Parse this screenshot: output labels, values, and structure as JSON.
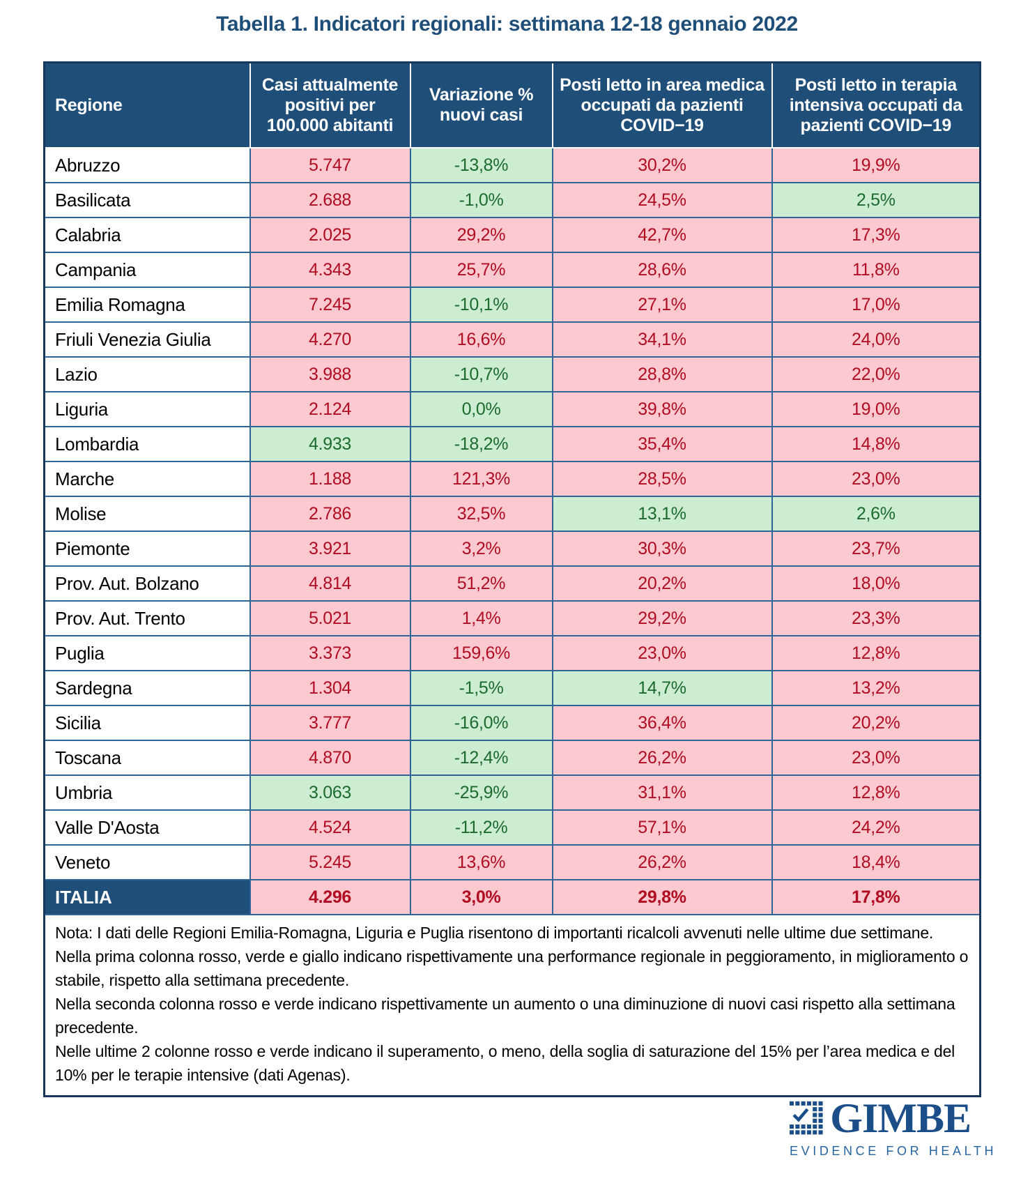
{
  "chart_data": {
    "type": "table",
    "title": "Tabella 1. Indicatori regionali: settimana 12-18 gennaio 2022",
    "columns": [
      "Regione",
      "Casi attualmente positivi per 100.000 abitanti",
      "Variazione % nuovi casi",
      "Posti letto in area medica occupati da pazienti COVID−19",
      "Posti letto in terapia intensiva occupati da pazienti COVID−19"
    ],
    "status_meaning": {
      "red": "peggioramento / soglia superata",
      "green": "miglioramento / sotto soglia"
    },
    "rows": [
      {
        "region": "Abruzzo",
        "values": [
          {
            "text": "5.747",
            "status": "red"
          },
          {
            "text": "-13,8%",
            "status": "green"
          },
          {
            "text": "30,2%",
            "status": "red"
          },
          {
            "text": "19,9%",
            "status": "red"
          }
        ]
      },
      {
        "region": "Basilicata",
        "values": [
          {
            "text": "2.688",
            "status": "red"
          },
          {
            "text": "-1,0%",
            "status": "green"
          },
          {
            "text": "24,5%",
            "status": "red"
          },
          {
            "text": "2,5%",
            "status": "green"
          }
        ]
      },
      {
        "region": "Calabria",
        "values": [
          {
            "text": "2.025",
            "status": "red"
          },
          {
            "text": "29,2%",
            "status": "red"
          },
          {
            "text": "42,7%",
            "status": "red"
          },
          {
            "text": "17,3%",
            "status": "red"
          }
        ]
      },
      {
        "region": "Campania",
        "values": [
          {
            "text": "4.343",
            "status": "red"
          },
          {
            "text": "25,7%",
            "status": "red"
          },
          {
            "text": "28,6%",
            "status": "red"
          },
          {
            "text": "11,8%",
            "status": "red"
          }
        ]
      },
      {
        "region": "Emilia Romagna",
        "values": [
          {
            "text": "7.245",
            "status": "red"
          },
          {
            "text": "-10,1%",
            "status": "green"
          },
          {
            "text": "27,1%",
            "status": "red"
          },
          {
            "text": "17,0%",
            "status": "red"
          }
        ]
      },
      {
        "region": "Friuli Venezia Giulia",
        "values": [
          {
            "text": "4.270",
            "status": "red"
          },
          {
            "text": "16,6%",
            "status": "red"
          },
          {
            "text": "34,1%",
            "status": "red"
          },
          {
            "text": "24,0%",
            "status": "red"
          }
        ]
      },
      {
        "region": "Lazio",
        "values": [
          {
            "text": "3.988",
            "status": "red"
          },
          {
            "text": "-10,7%",
            "status": "green"
          },
          {
            "text": "28,8%",
            "status": "red"
          },
          {
            "text": "22,0%",
            "status": "red"
          }
        ]
      },
      {
        "region": "Liguria",
        "values": [
          {
            "text": "2.124",
            "status": "red"
          },
          {
            "text": "0,0%",
            "status": "green"
          },
          {
            "text": "39,8%",
            "status": "red"
          },
          {
            "text": "19,0%",
            "status": "red"
          }
        ]
      },
      {
        "region": "Lombardia",
        "values": [
          {
            "text": "4.933",
            "status": "green"
          },
          {
            "text": "-18,2%",
            "status": "green"
          },
          {
            "text": "35,4%",
            "status": "red"
          },
          {
            "text": "14,8%",
            "status": "red"
          }
        ]
      },
      {
        "region": "Marche",
        "values": [
          {
            "text": "1.188",
            "status": "red"
          },
          {
            "text": "121,3%",
            "status": "red"
          },
          {
            "text": "28,5%",
            "status": "red"
          },
          {
            "text": "23,0%",
            "status": "red"
          }
        ]
      },
      {
        "region": "Molise",
        "values": [
          {
            "text": "2.786",
            "status": "red"
          },
          {
            "text": "32,5%",
            "status": "red"
          },
          {
            "text": "13,1%",
            "status": "green"
          },
          {
            "text": "2,6%",
            "status": "green"
          }
        ]
      },
      {
        "region": "Piemonte",
        "values": [
          {
            "text": "3.921",
            "status": "red"
          },
          {
            "text": "3,2%",
            "status": "red"
          },
          {
            "text": "30,3%",
            "status": "red"
          },
          {
            "text": "23,7%",
            "status": "red"
          }
        ]
      },
      {
        "region": "Prov. Aut. Bolzano",
        "values": [
          {
            "text": "4.814",
            "status": "red"
          },
          {
            "text": "51,2%",
            "status": "red"
          },
          {
            "text": "20,2%",
            "status": "red"
          },
          {
            "text": "18,0%",
            "status": "red"
          }
        ]
      },
      {
        "region": "Prov. Aut. Trento",
        "values": [
          {
            "text": "5.021",
            "status": "red"
          },
          {
            "text": "1,4%",
            "status": "red"
          },
          {
            "text": "29,2%",
            "status": "red"
          },
          {
            "text": "23,3%",
            "status": "red"
          }
        ]
      },
      {
        "region": "Puglia",
        "values": [
          {
            "text": "3.373",
            "status": "red"
          },
          {
            "text": "159,6%",
            "status": "red"
          },
          {
            "text": "23,0%",
            "status": "red"
          },
          {
            "text": "12,8%",
            "status": "red"
          }
        ]
      },
      {
        "region": "Sardegna",
        "values": [
          {
            "text": "1.304",
            "status": "red"
          },
          {
            "text": "-1,5%",
            "status": "green"
          },
          {
            "text": "14,7%",
            "status": "green"
          },
          {
            "text": "13,2%",
            "status": "red"
          }
        ]
      },
      {
        "region": "Sicilia",
        "values": [
          {
            "text": "3.777",
            "status": "red"
          },
          {
            "text": "-16,0%",
            "status": "green"
          },
          {
            "text": "36,4%",
            "status": "red"
          },
          {
            "text": "20,2%",
            "status": "red"
          }
        ]
      },
      {
        "region": "Toscana",
        "values": [
          {
            "text": "4.870",
            "status": "red"
          },
          {
            "text": "-12,4%",
            "status": "green"
          },
          {
            "text": "26,2%",
            "status": "red"
          },
          {
            "text": "23,0%",
            "status": "red"
          }
        ]
      },
      {
        "region": "Umbria",
        "values": [
          {
            "text": "3.063",
            "status": "green"
          },
          {
            "text": "-25,9%",
            "status": "green"
          },
          {
            "text": "31,1%",
            "status": "red"
          },
          {
            "text": "12,8%",
            "status": "red"
          }
        ]
      },
      {
        "region": "Valle D'Aosta",
        "values": [
          {
            "text": "4.524",
            "status": "red"
          },
          {
            "text": "-11,2%",
            "status": "green"
          },
          {
            "text": "57,1%",
            "status": "red"
          },
          {
            "text": "24,2%",
            "status": "red"
          }
        ]
      },
      {
        "region": "Veneto",
        "values": [
          {
            "text": "5.245",
            "status": "red"
          },
          {
            "text": "13,6%",
            "status": "red"
          },
          {
            "text": "26,2%",
            "status": "red"
          },
          {
            "text": "18,4%",
            "status": "red"
          }
        ]
      }
    ],
    "total_row": {
      "region": "ITALIA",
      "values": [
        {
          "text": "4.296",
          "status": "red"
        },
        {
          "text": "3,0%",
          "status": "red"
        },
        {
          "text": "29,8%",
          "status": "red"
        },
        {
          "text": "17,8%",
          "status": "red"
        }
      ]
    },
    "notes": [
      "Nota: I dati delle Regioni Emilia-Romagna, Liguria e Puglia risentono di importanti ricalcoli avvenuti nelle ultime due settimane.",
      "Nella prima colonna rosso, verde e giallo indicano rispettivamente una performance regionale in peggioramento, in miglioramento o stabile, rispetto alla settimana precedente.",
      "Nella seconda colonna rosso e verde indicano rispettivamente un aumento o una diminuzione di nuovi casi rispetto alla settimana precedente.",
      "Nelle ultime 2 colonne rosso e verde indicano il superamento, o meno, della soglia di saturazione del 15% per l’area medica e del 10% per le terapie intensive (dati Agenas)."
    ]
  },
  "colors": {
    "title_text": "#1F4E79",
    "header_bg": "#1F4E79",
    "header_text": "#FFFFFF",
    "total_label_bg": "#1F4E79",
    "red_cell_bg": "#FBC9CF",
    "red_cell_text": "#B00D23",
    "green_cell_bg": "#CDEDD3",
    "green_cell_text": "#1C6B2D",
    "border": "#2E6496",
    "outer_border": "#17375D",
    "logo_blue": "#1B4E89",
    "tagline_blue": "#2765A0"
  },
  "logo": {
    "brand": "GIMBE",
    "tagline": "EVIDENCE FOR HEALTH"
  }
}
